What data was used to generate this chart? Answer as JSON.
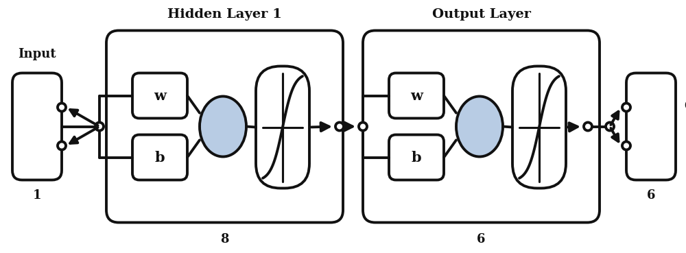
{
  "bg_color": "#ffffff",
  "lc": "#111111",
  "lw": 2.8,
  "fig_w": 10.0,
  "fig_h": 3.69,
  "hidden_layer_label": "Hidden Layer 1",
  "output_layer_label": "Output Layer",
  "input_label": "Input",
  "output_label": "Output",
  "input_number": "1",
  "hidden_number": "8",
  "output_number1": "6",
  "output_number2": "6",
  "w_label": "w",
  "b_label": "b",
  "plus_label": "+",
  "sum_fill": "#b8cce4",
  "fontsize_label": 13,
  "fontsize_wb": 15,
  "fontsize_plus": 17,
  "fontsize_num": 13,
  "fontsize_title": 14
}
